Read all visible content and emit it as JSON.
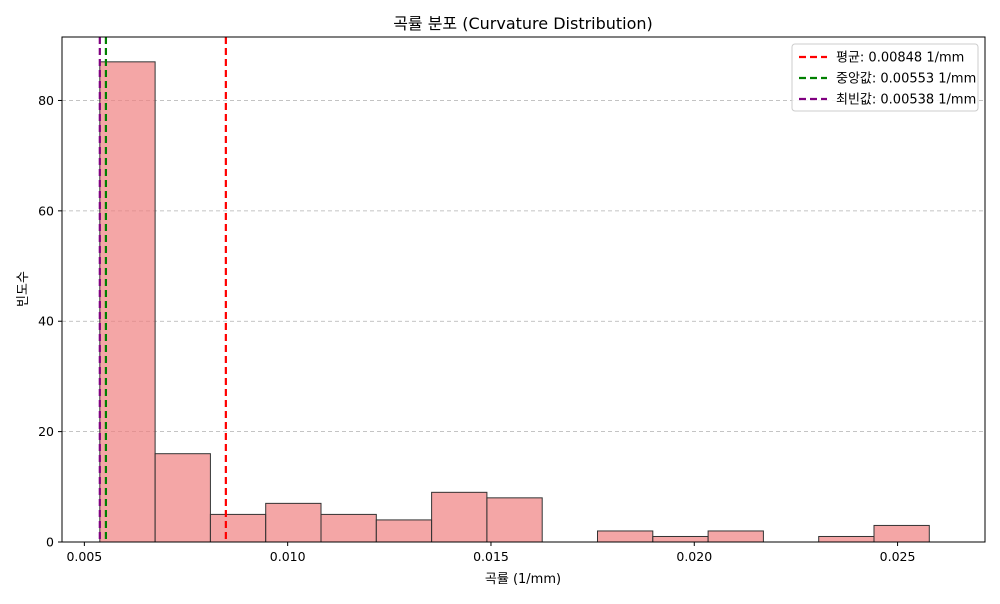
{
  "chart_data": {
    "type": "bar",
    "title": "곡률 분포 (Curvature Distribution)",
    "xlabel": "곡률 (1/mm)",
    "ylabel": "빈도수",
    "xlim": [
      0.00445,
      0.02715
    ],
    "ylim": [
      0,
      91.5
    ],
    "x_ticks": [
      "0.005",
      "0.010",
      "0.015",
      "0.020",
      "0.025"
    ],
    "x_tick_values": [
      0.005,
      0.01,
      0.015,
      0.02,
      0.025
    ],
    "y_ticks": [
      "0",
      "20",
      "40",
      "60",
      "80"
    ],
    "y_tick_values": [
      0,
      20,
      40,
      60,
      80
    ],
    "grid": "y-dashed",
    "bar_color": "#f08080",
    "bar_edge_color": "#333333",
    "bins": [
      {
        "x0": 0.00538,
        "x1": 0.00674,
        "count": 87
      },
      {
        "x0": 0.00674,
        "x1": 0.0081,
        "count": 16
      },
      {
        "x0": 0.0081,
        "x1": 0.00946,
        "count": 5
      },
      {
        "x0": 0.00946,
        "x1": 0.01082,
        "count": 7
      },
      {
        "x0": 0.01082,
        "x1": 0.01218,
        "count": 5
      },
      {
        "x0": 0.01218,
        "x1": 0.01354,
        "count": 4
      },
      {
        "x0": 0.01354,
        "x1": 0.0149,
        "count": 9
      },
      {
        "x0": 0.0149,
        "x1": 0.01626,
        "count": 8
      },
      {
        "x0": 0.01626,
        "x1": 0.01762,
        "count": 0
      },
      {
        "x0": 0.01762,
        "x1": 0.01898,
        "count": 2
      },
      {
        "x0": 0.01898,
        "x1": 0.02034,
        "count": 1
      },
      {
        "x0": 0.02034,
        "x1": 0.0217,
        "count": 2
      },
      {
        "x0": 0.0217,
        "x1": 0.02306,
        "count": 0
      },
      {
        "x0": 0.02306,
        "x1": 0.02442,
        "count": 1
      },
      {
        "x0": 0.02442,
        "x1": 0.02578,
        "count": 3
      }
    ],
    "reference_lines": [
      {
        "label": "평균: 0.00848 1/mm",
        "x": 0.00848,
        "color": "#ff0000"
      },
      {
        "label": "중앙값: 0.00553 1/mm",
        "x": 0.00553,
        "color": "#008000"
      },
      {
        "label": "최빈값: 0.00538 1/mm",
        "x": 0.00538,
        "color": "#800080"
      }
    ],
    "legend_position": "top-right"
  }
}
